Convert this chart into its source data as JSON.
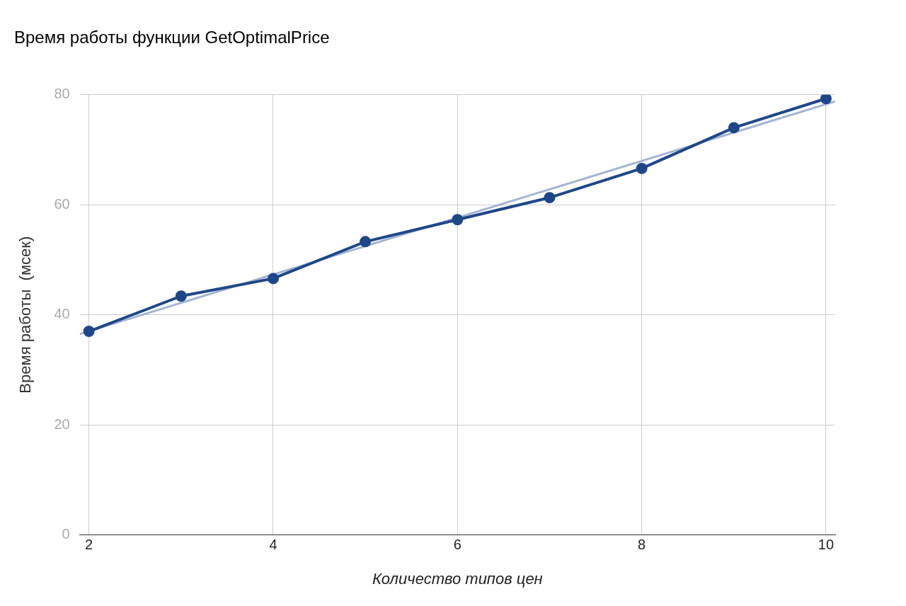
{
  "chart_data": {
    "type": "line",
    "title": "Время работы функции GetOptimalPrice",
    "xlabel": "Количество типов цен",
    "ylabel": "Время работы  (мсек)",
    "x": [
      2,
      3,
      4,
      5,
      6,
      7,
      8,
      9,
      10
    ],
    "series": [
      {
        "color": "#1f4788",
        "values": [
          37.0,
          43.4,
          46.6,
          53.3,
          57.3,
          61.3,
          66.6,
          74.0,
          79.3
        ],
        "marker": "circle"
      },
      {
        "type": "line",
        "color": "#a3b4d4",
        "x": [
          1.9,
          10.1
        ],
        "values": [
          36.5,
          78.8
        ],
        "marker": "none"
      }
    ],
    "xlim": [
      1.9,
      10.1
    ],
    "xticks": [
      2,
      4,
      6,
      8,
      10
    ],
    "ylim": [
      0,
      80
    ],
    "yticks": [
      0,
      20,
      40,
      60,
      80
    ],
    "grid": true,
    "legend": false
  }
}
